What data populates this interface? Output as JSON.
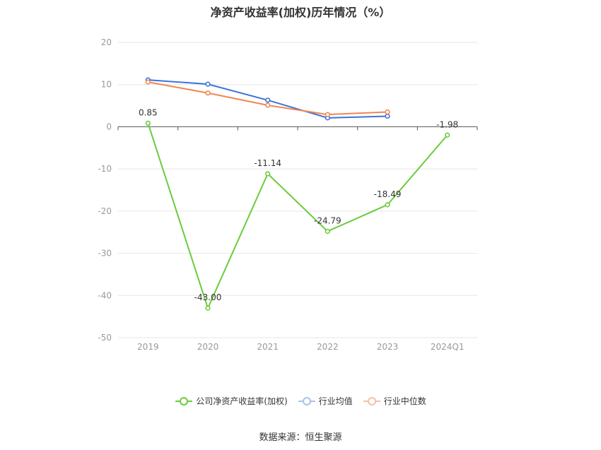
{
  "chart_data": {
    "type": "line",
    "title": "净资产收益率(加权)历年情况（%）",
    "categories": [
      "2019",
      "2020",
      "2021",
      "2022",
      "2023",
      "2024Q1"
    ],
    "ylim": [
      -50,
      20
    ],
    "yticks": [
      20,
      10,
      0,
      -10,
      -20,
      -30,
      -40,
      -50
    ],
    "grid": true,
    "legend_position": "bottom",
    "series": [
      {
        "name": "公司净资产收益率(加权)",
        "color": "#6acc3a",
        "values": [
          0.85,
          -43.0,
          -11.14,
          -24.79,
          -18.49,
          -1.98
        ],
        "labels": [
          "0.85",
          "-43.00",
          "-11.14",
          "-24.79",
          "-18.49",
          "-1.98"
        ]
      },
      {
        "name": "行业均值",
        "color": "#3b73d9",
        "values": [
          11.1,
          10.1,
          6.3,
          2.1,
          2.5,
          null
        ]
      },
      {
        "name": "行业中位数",
        "color": "#f08650",
        "values": [
          10.6,
          8.0,
          5.1,
          2.9,
          3.5,
          null
        ]
      }
    ]
  },
  "source": "数据来源：恒生聚源"
}
